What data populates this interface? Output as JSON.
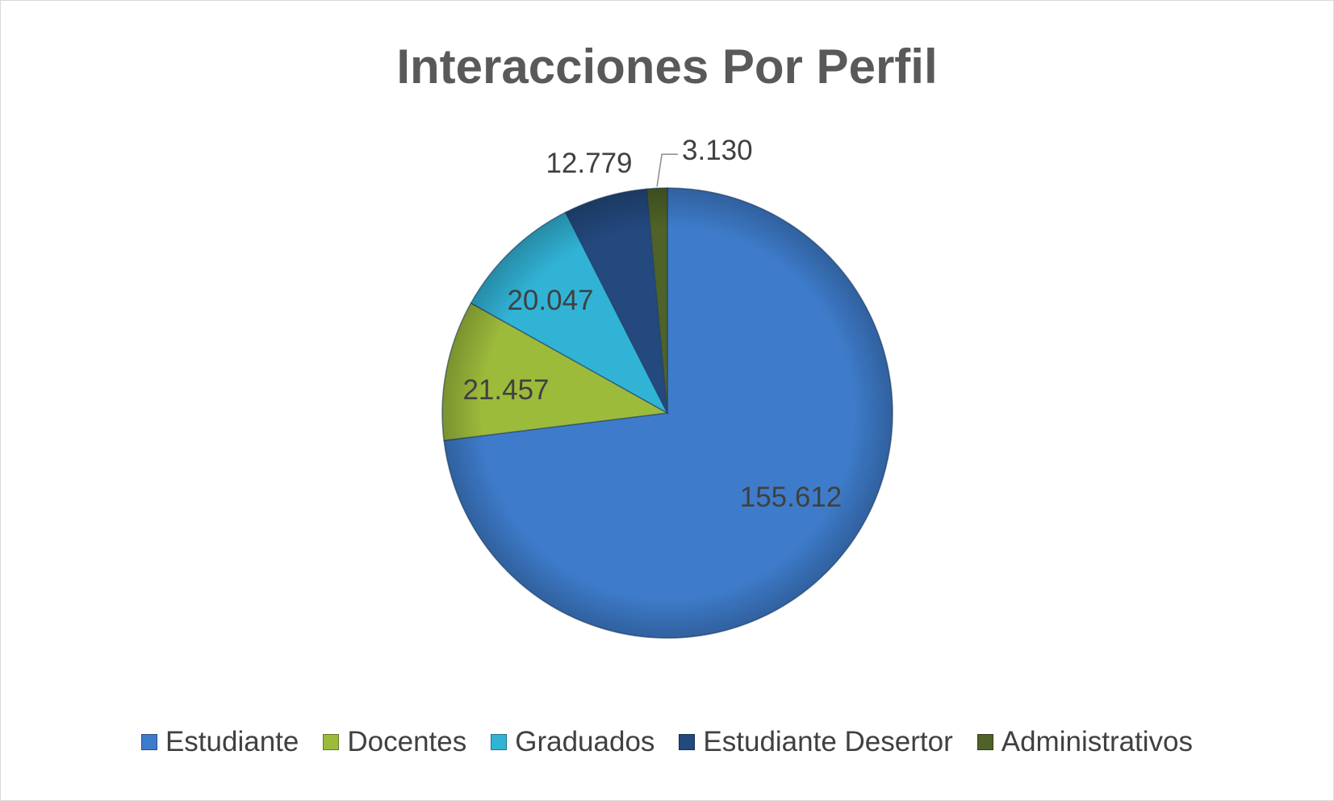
{
  "chart_data": {
    "type": "pie",
    "title": "Interacciones Por Perfil",
    "categories": [
      "Estudiante",
      "Docentes",
      "Graduados",
      "Estudiante Desertor",
      "Administrativos"
    ],
    "values": [
      155612,
      21457,
      20047,
      12779,
      3130
    ],
    "value_labels": [
      "155.612",
      "21.457",
      "20.047",
      "12.779",
      "3.130"
    ],
    "colors": [
      "#3E7CCB",
      "#9DBB3B",
      "#31B3D6",
      "#23497E",
      "#4F6228"
    ],
    "legend_position": "bottom",
    "start_angle": "12 o'clock",
    "direction": "clockwise"
  }
}
